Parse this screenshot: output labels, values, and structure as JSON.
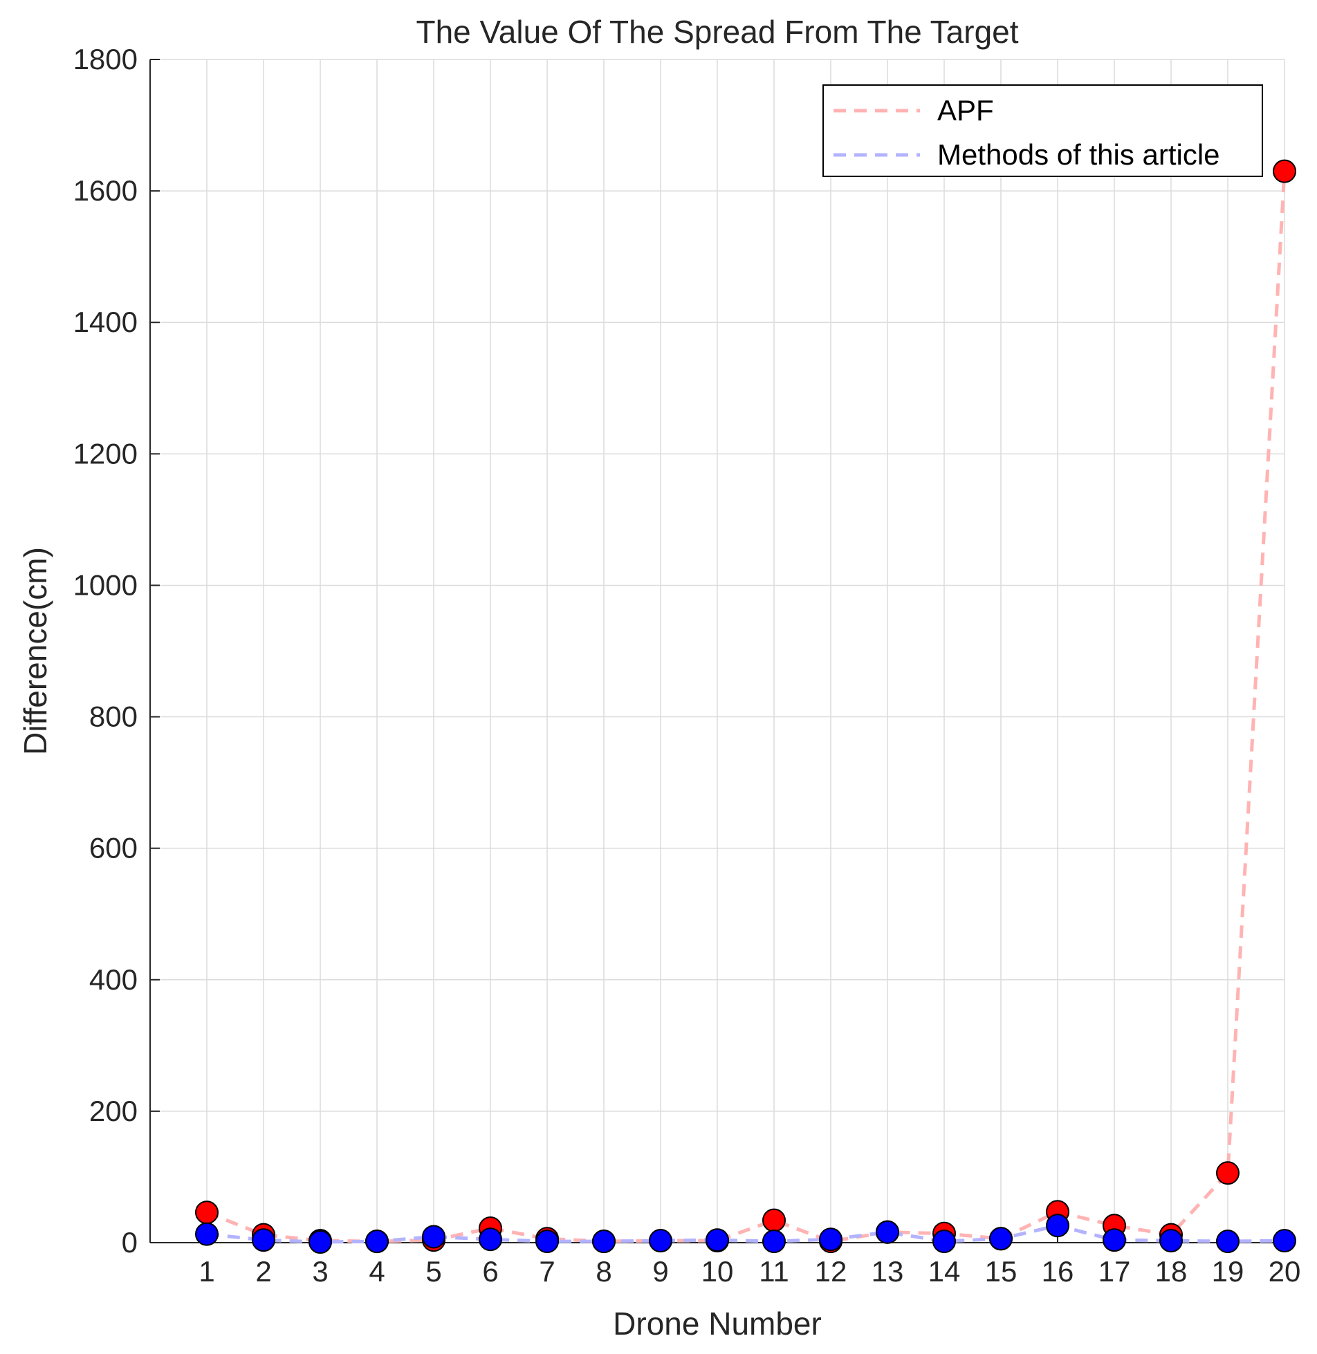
{
  "chart_data": {
    "type": "line",
    "title": "The Value Of The Spread From The Target",
    "xlabel": "Drone Number",
    "ylabel": "Difference(cm)",
    "xlim": [
      0,
      20
    ],
    "ylim": [
      0,
      1800
    ],
    "x": [
      1,
      2,
      3,
      4,
      5,
      6,
      7,
      8,
      9,
      10,
      11,
      12,
      13,
      14,
      15,
      16,
      17,
      18,
      19,
      20
    ],
    "xticks": [
      1,
      2,
      3,
      4,
      5,
      6,
      7,
      8,
      9,
      10,
      11,
      12,
      13,
      14,
      15,
      16,
      17,
      18,
      19,
      20
    ],
    "yticks": [
      0,
      200,
      400,
      600,
      800,
      1000,
      1200,
      1400,
      1600,
      1800
    ],
    "grid": true,
    "legend_position": "top-right",
    "series": [
      {
        "name": "APF",
        "line_color": "#ffb3b3",
        "marker_color": "#ff0000",
        "line_style": "dashed",
        "values": [
          46,
          12,
          3,
          2,
          4,
          22,
          6,
          2,
          3,
          3,
          34,
          2,
          16,
          14,
          6,
          47,
          26,
          12,
          106,
          1630
        ]
      },
      {
        "name": "Methods of this article",
        "line_color": "#b3b3ff",
        "marker_color": "#0000ff",
        "line_style": "dashed",
        "values": [
          13,
          4,
          1,
          2,
          9,
          5,
          2,
          2,
          3,
          4,
          2,
          5,
          16,
          2,
          6,
          26,
          4,
          3,
          2,
          3
        ]
      }
    ]
  }
}
